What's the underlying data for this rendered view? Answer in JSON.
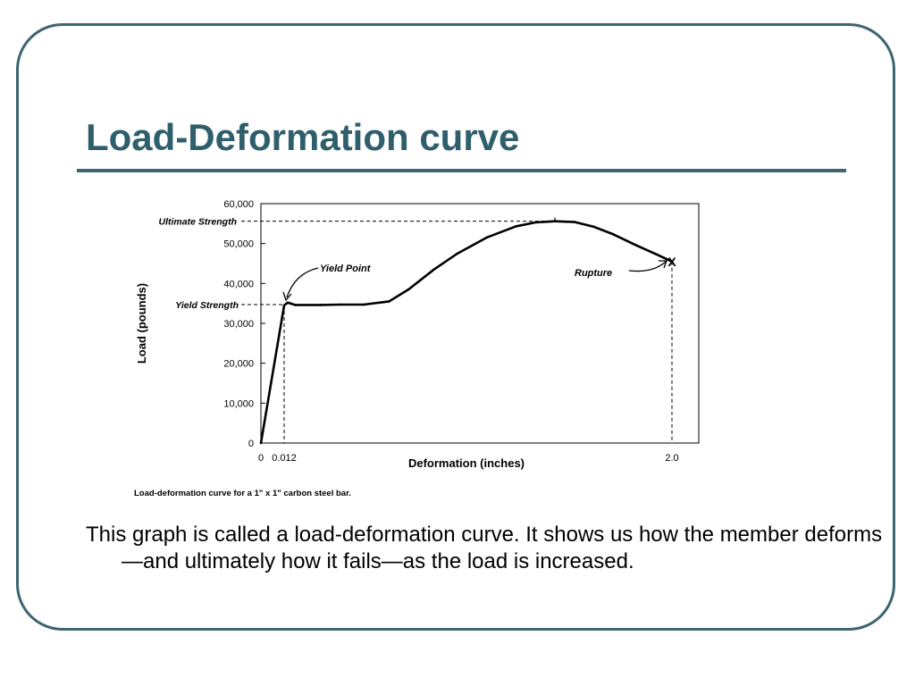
{
  "slide": {
    "title": "Load-Deformation curve",
    "body": "This graph is called a load-deformation curve. It shows us how the member deforms—and ultimately how it fails—as the load is increased.",
    "accent_color": "#3d6570",
    "title_color": "#2f5f6c"
  },
  "chart_data": {
    "type": "line",
    "title": "",
    "caption": "Load-deformation curve for a 1\" x 1\" carbon steel bar.",
    "xlabel": "Deformation (inches)",
    "ylabel": "Load (pounds)",
    "ylim": [
      0,
      60000
    ],
    "y_ticks": [
      {
        "value": 0,
        "label": "0"
      },
      {
        "value": 10000,
        "label": "10,000"
      },
      {
        "value": 20000,
        "label": "20,000"
      },
      {
        "value": 30000,
        "label": "30,000"
      },
      {
        "value": 40000,
        "label": "40,000"
      },
      {
        "value": 50000,
        "label": "50,000"
      },
      {
        "value": 60000,
        "label": "60,000"
      }
    ],
    "x_ticks": [
      {
        "value": 0,
        "label": "0"
      },
      {
        "value": 0.012,
        "label": "0.012"
      },
      {
        "value": 2.0,
        "label": "2.0"
      }
    ],
    "grid": false,
    "legend": "none",
    "series": [
      {
        "points": [
          [
            0,
            0
          ],
          [
            0.012,
            34500
          ],
          [
            0.03,
            35200
          ],
          [
            0.07,
            34600
          ],
          [
            0.2,
            34600
          ],
          [
            0.3,
            34700
          ],
          [
            0.42,
            34700
          ],
          [
            0.55,
            35500
          ],
          [
            0.65,
            38500
          ],
          [
            0.78,
            43500
          ],
          [
            0.9,
            47500
          ],
          [
            1.05,
            51500
          ],
          [
            1.2,
            54300
          ],
          [
            1.3,
            55300
          ],
          [
            1.4,
            55600
          ],
          [
            1.5,
            55400
          ],
          [
            1.6,
            54200
          ],
          [
            1.7,
            52300
          ],
          [
            1.82,
            49500
          ],
          [
            1.92,
            47300
          ],
          [
            2.0,
            45500
          ]
        ]
      }
    ],
    "annotations": {
      "ultimate_strength": {
        "label": "Ultimate Strength",
        "value": 55600
      },
      "yield_strength": {
        "label": "Yield Strength",
        "value": 34700
      },
      "yield_point": {
        "label": "Yield Point",
        "x": 0.012,
        "y": 35200
      },
      "rupture": {
        "label": "Rupture",
        "marker": "X",
        "x": 2.0,
        "y": 45500
      }
    }
  }
}
